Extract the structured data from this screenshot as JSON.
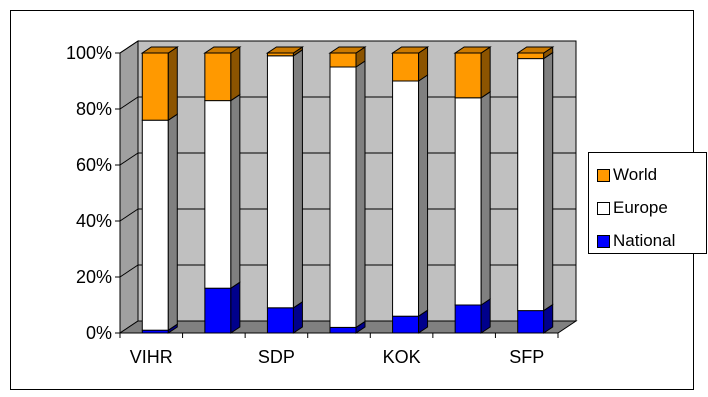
{
  "chart_data": {
    "type": "bar",
    "stacked": true,
    "percent": true,
    "three_d": true,
    "categories": [
      "VIHR",
      "",
      "SDP",
      "",
      "KOK",
      "",
      "SFP"
    ],
    "series": [
      {
        "name": "National",
        "color": "#0000FF",
        "values": [
          1,
          16,
          9,
          2,
          6,
          10,
          8
        ]
      },
      {
        "name": "Europe",
        "color": "#FFFFFF",
        "values": [
          75,
          67,
          90,
          93,
          84,
          74,
          90
        ]
      },
      {
        "name": "World",
        "color": "#FF9900",
        "values": [
          24,
          17,
          1,
          5,
          10,
          16,
          2
        ]
      }
    ],
    "ylim": [
      0,
      100
    ],
    "yticks": [
      "0%",
      "20%",
      "40%",
      "60%",
      "80%",
      "100%"
    ],
    "grid": true,
    "legend_position": "right",
    "plot_background": "#C0C0C0"
  }
}
